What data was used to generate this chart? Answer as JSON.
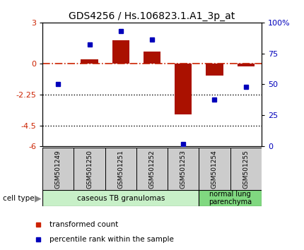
{
  "title": "GDS4256 / Hs.106823.1.A1_3p_at",
  "samples": [
    "GSM501249",
    "GSM501250",
    "GSM501251",
    "GSM501252",
    "GSM501253",
    "GSM501254",
    "GSM501255"
  ],
  "transformed_count": [
    0.0,
    0.3,
    1.7,
    0.9,
    -3.7,
    -0.85,
    -0.2
  ],
  "percentile_rank": [
    50,
    82,
    93,
    86,
    2,
    38,
    48
  ],
  "ylim_left": [
    -6,
    3
  ],
  "ylim_right": [
    0,
    100
  ],
  "yticks_left": [
    -6,
    -4.5,
    -2.25,
    0,
    3
  ],
  "ytick_labels_left": [
    "-6",
    "-4.5",
    "-2.25",
    "0",
    "3"
  ],
  "yticks_right": [
    0,
    25,
    50,
    75,
    100
  ],
  "ytick_labels_right": [
    "0",
    "25",
    "50",
    "75",
    "100%"
  ],
  "hline_y": 0,
  "dotted_lines": [
    -2.25,
    -4.5
  ],
  "bar_color": "#aa1100",
  "dot_color": "#0000bb",
  "hline_color": "#cc2200",
  "group1_indices": [
    0,
    1,
    2,
    3,
    4
  ],
  "group2_indices": [
    5,
    6
  ],
  "group1_label": "caseous TB granulomas",
  "group2_label": "normal lung\nparenchyma",
  "group1_color": "#c8f0c8",
  "group2_color": "#80d880",
  "sample_box_color": "#cccccc",
  "cell_type_label": "cell type",
  "legend_items": [
    "transformed count",
    "percentile rank within the sample"
  ],
  "legend_colors": [
    "#cc2200",
    "#0000bb"
  ],
  "title_fontsize": 10,
  "axis_fontsize": 8,
  "label_fontsize": 8
}
